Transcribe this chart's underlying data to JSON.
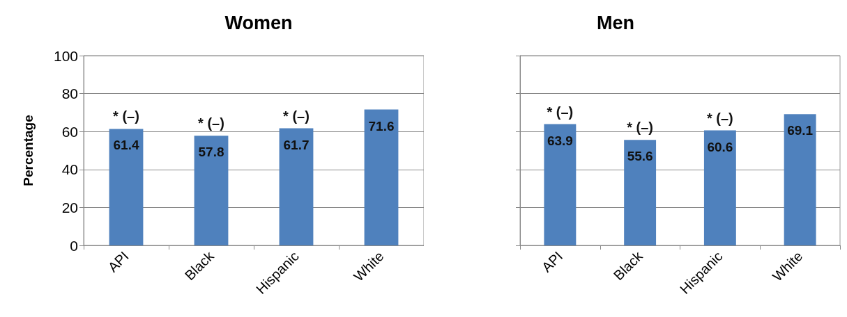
{
  "chart_data": [
    {
      "type": "bar",
      "title": "Women",
      "ylabel": "Percentage",
      "categories": [
        "API",
        "Black",
        "Hispanic",
        "White"
      ],
      "series": [
        {
          "color": "#4f81bd",
          "values": [
            61.4,
            57.8,
            61.7,
            71.6
          ]
        }
      ],
      "ylim": [
        0,
        100
      ],
      "yticks": [
        0,
        20,
        40,
        60,
        80,
        100
      ],
      "grid": "y",
      "data_labels": true,
      "annotations": [
        {
          "text": "* (–)",
          "x": "API",
          "y": 61.4
        },
        {
          "text": "* (–)",
          "x": "Black",
          "y": 57.8
        },
        {
          "text": "* (–)",
          "x": "Hispanic",
          "y": 61.7
        }
      ]
    },
    {
      "type": "bar",
      "title": "Men",
      "categories": [
        "API",
        "Black",
        "Hispanic",
        "White"
      ],
      "series": [
        {
          "color": "#4f81bd",
          "values": [
            63.9,
            55.6,
            60.6,
            69.1
          ]
        }
      ],
      "ylim": [
        0,
        100
      ],
      "yticks": [
        0,
        20,
        40,
        60,
        80,
        100
      ],
      "grid": "y",
      "data_labels": true,
      "tick_labels": "x",
      "annotations": [
        {
          "text": "* (–)",
          "x": "API",
          "y": 63.9
        },
        {
          "text": "* (–)",
          "x": "Black",
          "y": 55.6
        },
        {
          "text": "* (–)",
          "x": "Hispanic",
          "y": 60.6
        }
      ]
    }
  ]
}
